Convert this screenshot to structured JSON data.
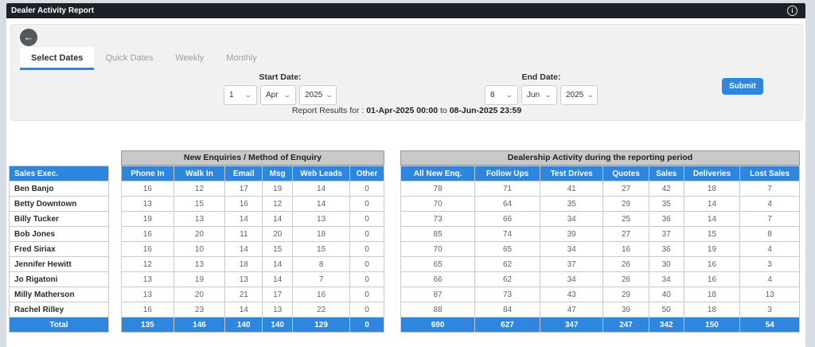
{
  "titlebar": {
    "title": "Dealer Activity Report"
  },
  "icons": {
    "info": "info-icon",
    "back": "back-arrow-icon",
    "chevron": "chevron-down-icon"
  },
  "back_arrow_glyph": "←",
  "chevron_glyph": "⌄",
  "info_glyph": "i",
  "tabs": [
    {
      "label": "Select Dates",
      "active": true
    },
    {
      "label": "Quick Dates",
      "active": false
    },
    {
      "label": "Weekly",
      "active": false
    },
    {
      "label": "Monthly",
      "active": false
    }
  ],
  "filters": {
    "start": {
      "label": "Start Date:",
      "day": "1",
      "month": "Apr",
      "year": "2025"
    },
    "end": {
      "label": "End Date:",
      "day": "8",
      "month": "Jun",
      "year": "2025"
    },
    "submit_label": "Submit",
    "report": {
      "prefix": "Report Results for : ",
      "start_value": "01-Apr-2025 00:00",
      "connector": " to ",
      "end_value": "08-Jun-2025 23:59"
    }
  },
  "tables": {
    "sales_exec": {
      "header": "Sales Exec.",
      "names": [
        "Ben Banjo",
        "Betty Downtown",
        "Billy Tucker",
        "Bob Jones",
        "Fred Siriax",
        "Jennifer Hewitt",
        "Jo Rigatoni",
        "Milly Matherson",
        "Rachel Rilley"
      ],
      "total_label": "Total"
    },
    "enquiries": {
      "group_header": "New Enquiries / Method of Enquiry",
      "columns": [
        "Phone In",
        "Walk In",
        "Email",
        "Msg",
        "Web Leads",
        "Other"
      ],
      "rows": [
        [
          16,
          12,
          17,
          19,
          14,
          0
        ],
        [
          13,
          15,
          16,
          12,
          14,
          0
        ],
        [
          19,
          13,
          14,
          14,
          13,
          0
        ],
        [
          16,
          20,
          11,
          20,
          18,
          0
        ],
        [
          16,
          10,
          14,
          15,
          15,
          0
        ],
        [
          12,
          13,
          18,
          14,
          8,
          0
        ],
        [
          13,
          19,
          13,
          14,
          7,
          0
        ],
        [
          13,
          20,
          21,
          17,
          16,
          0
        ],
        [
          16,
          23,
          14,
          13,
          22,
          0
        ]
      ],
      "totals": [
        135,
        146,
        140,
        140,
        129,
        0
      ]
    },
    "activity": {
      "group_header": "Dealership Activity during the reporting period",
      "columns": [
        "All New Enq.",
        "Follow Ups",
        "Test Drives",
        "Quotes",
        "Sales",
        "Deliveries",
        "Lost Sales"
      ],
      "rows": [
        [
          78,
          71,
          41,
          27,
          42,
          18,
          7
        ],
        [
          70,
          64,
          35,
          29,
          35,
          14,
          4
        ],
        [
          73,
          66,
          34,
          25,
          36,
          14,
          7
        ],
        [
          85,
          74,
          39,
          27,
          37,
          15,
          8
        ],
        [
          70,
          65,
          34,
          16,
          36,
          19,
          4
        ],
        [
          65,
          62,
          37,
          26,
          30,
          16,
          3
        ],
        [
          66,
          62,
          34,
          26,
          34,
          16,
          4
        ],
        [
          87,
          73,
          43,
          29,
          40,
          18,
          13
        ],
        [
          88,
          84,
          47,
          39,
          50,
          18,
          3
        ]
      ],
      "totals": [
        690,
        627,
        347,
        247,
        342,
        150,
        54
      ]
    }
  },
  "colors": {
    "accent": "#2e86de",
    "titlebar_bg": "#1d2125",
    "page_bg": "#d8dee6",
    "group_header_bg": "#c9c9c9"
  }
}
